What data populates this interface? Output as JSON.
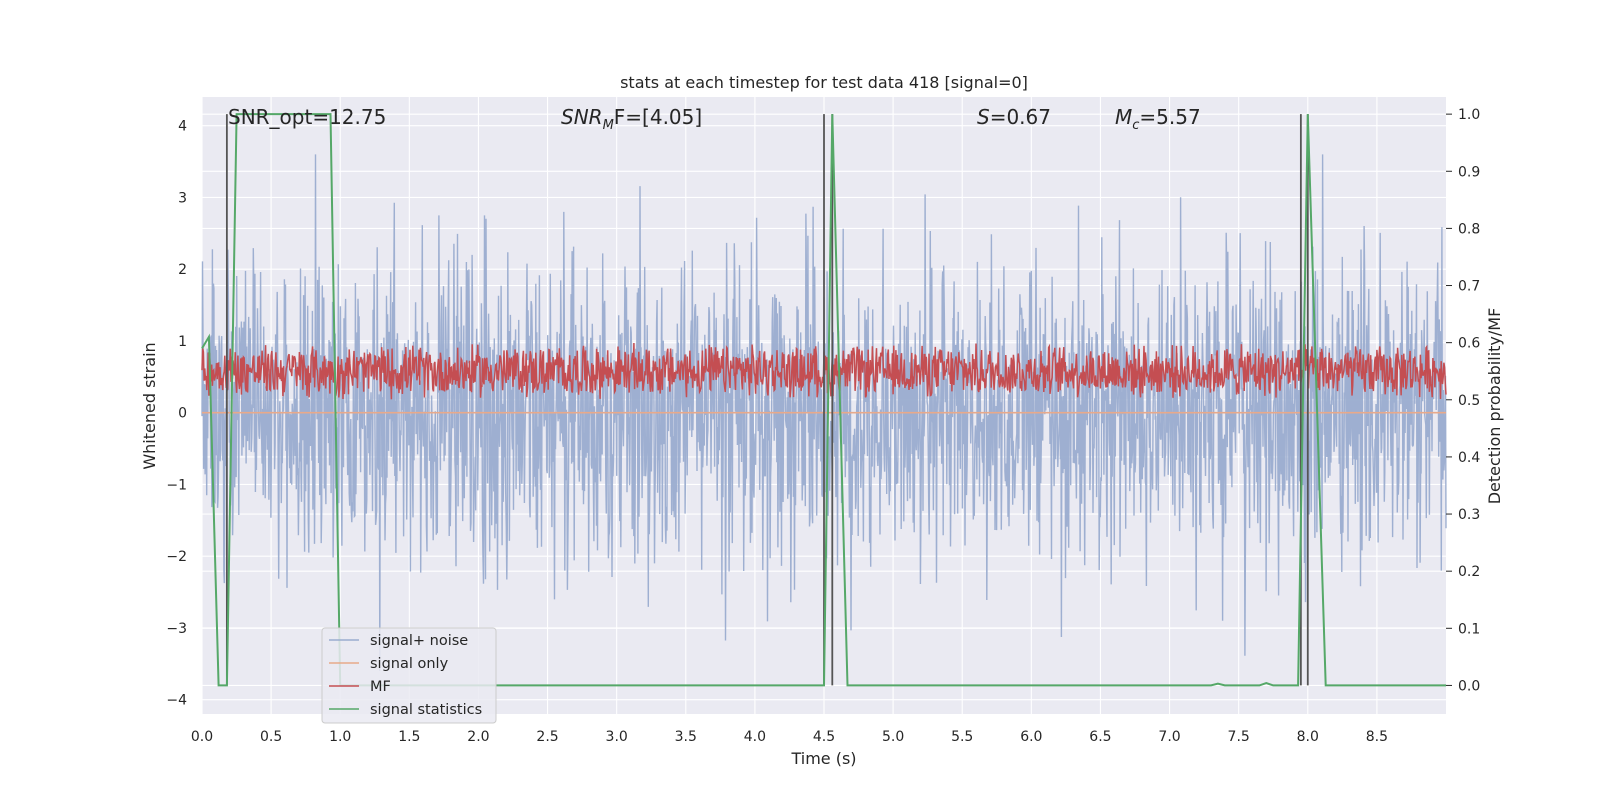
{
  "chart_data": {
    "type": "line",
    "title": "stats at each timestep for test data 418 [signal=0]",
    "xlabel": "Time (s)",
    "ylabel_left": "Whitened strain",
    "ylabel_right": "Detection probability/MF",
    "xlim": [
      0,
      9
    ],
    "ylim_left": [
      -4.2,
      4.4
    ],
    "ylim_right": [
      -0.05,
      1.03
    ],
    "xticks": [
      "0.0",
      "0.5",
      "1.0",
      "1.5",
      "2.0",
      "2.5",
      "3.0",
      "3.5",
      "4.0",
      "4.5",
      "5.0",
      "5.5",
      "6.0",
      "6.5",
      "7.0",
      "7.5",
      "8.0",
      "8.5"
    ],
    "yticks_left": [
      "4",
      "3",
      "2",
      "1",
      "0",
      "−1",
      "−2",
      "−3",
      "−4"
    ],
    "yticks_right": [
      "1.0",
      "0.9",
      "0.8",
      "0.7",
      "0.6",
      "0.5",
      "0.4",
      "0.3",
      "0.2",
      "0.1",
      "0.0"
    ],
    "grid": true,
    "legend_location": "lower-left",
    "annotations": {
      "snr_opt": "SNR_opt=12.75",
      "snr_mf_main": "SNR",
      "snr_mf_sub": "M",
      "snr_mf_rest": "F=[4.05]",
      "s_main": "S",
      "s_rest": "=0.67",
      "mc_main": "M",
      "mc_sub": "c",
      "mc_rest": "=5.57"
    },
    "vertical_markers_s": [
      0.18,
      4.5,
      4.56,
      7.95,
      8.0
    ],
    "series": [
      {
        "name": "signal+ noise",
        "color": "#9aaccf",
        "axis": "left",
        "description": "whitened noisy strain, amplitude roughly within -3.5 to 3.6"
      },
      {
        "name": "signal only",
        "color": "#e8a98a",
        "axis": "left",
        "values_const": 0.0
      },
      {
        "name": "MF",
        "color": "#c44e52",
        "axis": "right",
        "range": [
          0.5,
          0.6
        ]
      },
      {
        "name": "signal statistics",
        "color": "#55a868",
        "axis": "right",
        "x": [
          0.0,
          0.05,
          0.12,
          0.18,
          0.25,
          0.93,
          1.0,
          1.1,
          4.5,
          4.56,
          4.67,
          7.3,
          7.35,
          7.4,
          7.65,
          7.7,
          7.75,
          7.93,
          8.0,
          8.13,
          9.0
        ],
        "y": [
          0.59,
          0.61,
          0.0,
          0.0,
          1.0,
          1.0,
          0.0,
          0.0,
          0.0,
          1.0,
          0.0,
          0.0,
          0.003,
          0.0,
          0.0,
          0.004,
          0.0,
          0.0,
          1.0,
          0.0,
          0.0
        ]
      }
    ]
  }
}
